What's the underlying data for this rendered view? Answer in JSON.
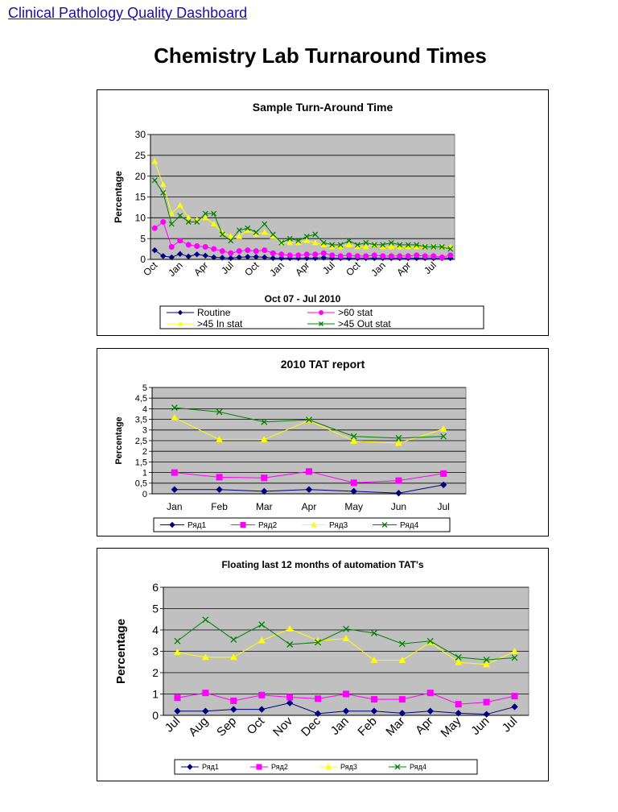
{
  "header": {
    "link_label": "Clinical Pathology Quality Dashboard",
    "page_title": "Chemistry Lab Turnaround Times"
  },
  "chart_data": [
    {
      "type": "line",
      "title": "Sample Turn-Around Time",
      "xlabel": "Oct 07 - Jul 2010",
      "ylabel": "Percentage",
      "ylim": [
        0,
        30
      ],
      "yticks": [
        "0",
        "5",
        "10",
        "15",
        "20",
        "25",
        "30"
      ],
      "x_tick_labels": [
        "Oct",
        "Jan",
        "Apr",
        "Jul",
        "Oct",
        "Jan",
        "Apr",
        "Jul",
        "Oct",
        "Jan",
        "Apr",
        "Jul"
      ],
      "grid": "horizontal",
      "legend_position": "bottom",
      "plot_background": "#c0c0c0",
      "series": [
        {
          "name": "Routine",
          "color": "#000080",
          "marker": "diamond",
          "values": [
            2.2,
            0.8,
            0.5,
            1.3,
            0.7,
            1.2,
            0.9,
            0.5,
            0.4,
            0.3,
            0.5,
            0.6,
            0.6,
            0.5,
            0.3,
            0.3,
            0.3,
            0.3,
            0.3,
            0.3,
            0.4,
            0.3,
            0.3,
            0.3,
            0.3,
            0.3,
            0.3,
            0.3,
            0.3,
            0.3,
            0.3,
            0.3,
            0.3,
            0.3,
            0.3,
            0.3
          ]
        },
        {
          "name": ">60 stat",
          "color": "#ff00ff",
          "marker": "circle",
          "values": [
            7.5,
            9,
            3,
            4.5,
            3.5,
            3.2,
            3,
            2.5,
            2,
            1.5,
            2,
            2.2,
            2,
            2.2,
            1.5,
            1.2,
            1,
            1,
            1.2,
            1.2,
            1.5,
            1,
            0.8,
            1,
            0.8,
            0.8,
            1,
            0.8,
            0.8,
            0.8,
            0.8,
            1,
            0.8,
            0.8,
            0.5,
            1
          ]
        },
        {
          "name": ">45 In stat",
          "color": "#ffff00",
          "marker": "triangle",
          "values": [
            23.5,
            18,
            11,
            13,
            10,
            9.5,
            10,
            8.5,
            6.5,
            5.5,
            5.5,
            7,
            6,
            6.5,
            5.5,
            4,
            4,
            4,
            4.5,
            4,
            3.5,
            3,
            3,
            3.5,
            3,
            3,
            3.5,
            3,
            3,
            3,
            3,
            3,
            3,
            3,
            3,
            3
          ]
        },
        {
          "name": ">45 Out stat",
          "color": "#008000",
          "marker": "x",
          "values": [
            19,
            16,
            8.5,
            10.5,
            9,
            9,
            11,
            11,
            6,
            4.5,
            7,
            7.5,
            6.5,
            8.5,
            6,
            4,
            5,
            4.5,
            5.5,
            6,
            4,
            3.5,
            3.5,
            4.5,
            3.5,
            4,
            3.5,
            3.5,
            4,
            3.5,
            3.5,
            3.5,
            3,
            3,
            3,
            2.5
          ]
        }
      ]
    },
    {
      "type": "line",
      "title": "2010 TAT report",
      "ylabel": "Percentage",
      "ylim": [
        0,
        5
      ],
      "yticks": [
        "0",
        "0,5",
        "1",
        "1,5",
        "2",
        "2,5",
        "3",
        "3,5",
        "4",
        "4,5",
        "5"
      ],
      "categories": [
        "Jan",
        "Feb",
        "Mar",
        "Apr",
        "May",
        "Jun",
        "Jul"
      ],
      "grid": "horizontal",
      "legend_position": "bottom",
      "plot_background": "#c0c0c0",
      "series": [
        {
          "name": "Ряд1",
          "color": "#000080",
          "marker": "diamond",
          "values": [
            0.2,
            0.2,
            0.12,
            0.2,
            0.12,
            0.03,
            0.42
          ]
        },
        {
          "name": "Ряд2",
          "color": "#ff00ff",
          "marker": "square",
          "values": [
            1.0,
            0.78,
            0.75,
            1.05,
            0.52,
            0.62,
            0.95
          ]
        },
        {
          "name": "Ряд3",
          "color": "#ffff00",
          "marker": "triangle",
          "values": [
            3.58,
            2.55,
            2.55,
            3.45,
            2.48,
            2.38,
            3.05
          ]
        },
        {
          "name": "Ряд4",
          "color": "#008000",
          "marker": "x",
          "values": [
            4.05,
            3.85,
            3.38,
            3.48,
            2.7,
            2.62,
            2.7
          ]
        }
      ]
    },
    {
      "type": "line",
      "title": "Floating last 12 months of automation TAT's",
      "ylabel": "Percentage",
      "ylim": [
        0,
        6
      ],
      "yticks": [
        "0",
        "1",
        "2",
        "3",
        "4",
        "5",
        "6"
      ],
      "categories": [
        "Jul",
        "Aug",
        "Sep",
        "Oct",
        "Nov",
        "Dec",
        "Jan",
        "Feb",
        "Mar",
        "Apr",
        "May",
        "Jun",
        "Jul"
      ],
      "grid": "horizontal",
      "legend_position": "bottom",
      "plot_background": "#c0c0c0",
      "series": [
        {
          "name": "Ряд1",
          "color": "#000080",
          "marker": "diamond",
          "values": [
            0.2,
            0.2,
            0.28,
            0.28,
            0.58,
            0.08,
            0.2,
            0.2,
            0.1,
            0.2,
            0.1,
            0.05,
            0.4
          ]
        },
        {
          "name": "Ряд2",
          "color": "#ff00ff",
          "marker": "square",
          "values": [
            0.82,
            1.05,
            0.68,
            0.95,
            0.85,
            0.78,
            1.0,
            0.75,
            0.75,
            1.05,
            0.52,
            0.62,
            0.9
          ]
        },
        {
          "name": "Ряд3",
          "color": "#ffff00",
          "marker": "triangle",
          "values": [
            2.95,
            2.72,
            2.72,
            3.5,
            4.05,
            3.5,
            3.6,
            2.58,
            2.58,
            3.42,
            2.48,
            2.38,
            3.0
          ]
        },
        {
          "name": "Ряд4",
          "color": "#008000",
          "marker": "x",
          "values": [
            3.48,
            4.48,
            3.55,
            4.25,
            3.32,
            3.42,
            4.05,
            3.85,
            3.35,
            3.48,
            2.72,
            2.6,
            2.7
          ]
        }
      ]
    }
  ]
}
